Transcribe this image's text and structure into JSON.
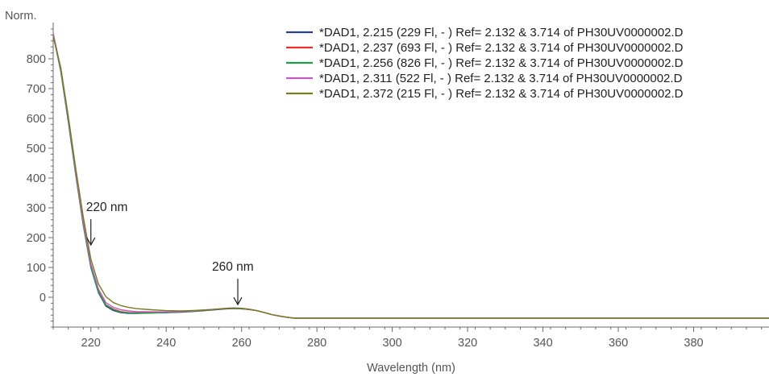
{
  "chart_data": {
    "type": "line",
    "title": "",
    "xlabel": "Wavelength (nm)",
    "ylabel": "Norm.",
    "xlim": [
      210,
      400
    ],
    "ylim": [
      -100,
      900
    ],
    "x_ticks": [
      220,
      240,
      260,
      280,
      300,
      320,
      340,
      360,
      380
    ],
    "y_ticks": [
      0,
      100,
      200,
      300,
      400,
      500,
      600,
      700,
      800
    ],
    "grid": false,
    "legend_position": "top-right",
    "series": [
      {
        "name": "*DAD1, 2.215 (229 Fl, - ) Ref= 2.132 &  3.714 of PH30UV0000002.D",
        "color": "#2b3f8f",
        "x": [
          210,
          212,
          214,
          216,
          218,
          220,
          222,
          224,
          226,
          228,
          230,
          232,
          236,
          240,
          244,
          248,
          252,
          256,
          258,
          260,
          262,
          264,
          266,
          268,
          270,
          272,
          274,
          276,
          280,
          300,
          320,
          340,
          360,
          380,
          400
        ],
        "y": [
          880,
          760,
          590,
          410,
          240,
          100,
          15,
          -30,
          -45,
          -52,
          -54,
          -54,
          -53,
          -52,
          -50,
          -47,
          -43,
          -39,
          -38,
          -39,
          -41,
          -45,
          -51,
          -58,
          -63,
          -67,
          -70,
          -70,
          -70,
          -70,
          -70,
          -70,
          -70,
          -70,
          -70
        ]
      },
      {
        "name": "*DAD1, 2.237 (693 Fl, - ) Ref= 2.132 &  3.714 of PH30UV0000002.D",
        "color": "#e8302f",
        "x": [
          210,
          212,
          214,
          216,
          218,
          220,
          222,
          224,
          226,
          228,
          230,
          232,
          236,
          240,
          244,
          248,
          252,
          256,
          258,
          260,
          262,
          264,
          266,
          268,
          270,
          272,
          274,
          276,
          280,
          300,
          320,
          340,
          360,
          380,
          400
        ],
        "y": [
          885,
          765,
          595,
          415,
          245,
          105,
          20,
          -25,
          -40,
          -48,
          -51,
          -52,
          -52,
          -51,
          -49,
          -46,
          -42,
          -38,
          -37,
          -38,
          -41,
          -45,
          -51,
          -58,
          -63,
          -67,
          -70,
          -70,
          -70,
          -70,
          -70,
          -70,
          -70,
          -70,
          -70
        ]
      },
      {
        "name": "*DAD1, 2.256 (826 Fl, - ) Ref= 2.132 &  3.714 of PH30UV0000002.D",
        "color": "#1f9e4a",
        "x": [
          210,
          212,
          214,
          216,
          218,
          220,
          222,
          224,
          226,
          228,
          230,
          232,
          236,
          240,
          244,
          248,
          252,
          256,
          258,
          260,
          262,
          264,
          266,
          268,
          270,
          272,
          274,
          276,
          280,
          300,
          320,
          340,
          360,
          380,
          400
        ],
        "y": [
          882,
          762,
          592,
          412,
          242,
          102,
          18,
          -27,
          -42,
          -50,
          -53,
          -53,
          -53,
          -51,
          -49,
          -46,
          -42,
          -38,
          -37,
          -38,
          -41,
          -45,
          -51,
          -58,
          -63,
          -67,
          -70,
          -70,
          -70,
          -70,
          -70,
          -70,
          -70,
          -70,
          -70
        ]
      },
      {
        "name": "*DAD1, 2.311 (522 Fl, - ) Ref= 2.132 &  3.714 of PH30UV0000002.D",
        "color": "#c25bc0",
        "x": [
          210,
          212,
          214,
          216,
          218,
          220,
          222,
          224,
          226,
          228,
          230,
          232,
          236,
          240,
          244,
          248,
          252,
          256,
          258,
          260,
          262,
          264,
          266,
          268,
          270,
          272,
          274,
          276,
          280,
          300,
          320,
          340,
          360,
          380,
          400
        ],
        "y": [
          885,
          768,
          600,
          420,
          252,
          112,
          28,
          -18,
          -34,
          -42,
          -46,
          -48,
          -49,
          -49,
          -48,
          -45,
          -41,
          -37,
          -36,
          -37,
          -40,
          -45,
          -51,
          -58,
          -63,
          -67,
          -70,
          -70,
          -70,
          -70,
          -70,
          -70,
          -70,
          -70,
          -70
        ]
      },
      {
        "name": "*DAD1, 2.372 (215 Fl, - ) Ref= 2.132 &  3.714 of PH30UV0000002.D",
        "color": "#7a7a1f",
        "x": [
          210,
          212,
          214,
          216,
          218,
          220,
          222,
          224,
          226,
          228,
          230,
          232,
          236,
          240,
          244,
          248,
          252,
          256,
          258,
          260,
          262,
          264,
          266,
          268,
          270,
          272,
          274,
          276,
          280,
          300,
          320,
          340,
          360,
          380,
          400
        ],
        "y": [
          875,
          772,
          608,
          432,
          268,
          128,
          45,
          2,
          -18,
          -28,
          -34,
          -38,
          -42,
          -45,
          -46,
          -44,
          -41,
          -37,
          -36,
          -37,
          -40,
          -45,
          -51,
          -58,
          -63,
          -67,
          -70,
          -70,
          -70,
          -70,
          -70,
          -70,
          -70,
          -70,
          -70
        ]
      }
    ],
    "annotations": [
      {
        "text": "220 nm",
        "x": 220,
        "y": 170
      },
      {
        "text": "260 nm",
        "x": 259,
        "y": -30
      }
    ]
  }
}
